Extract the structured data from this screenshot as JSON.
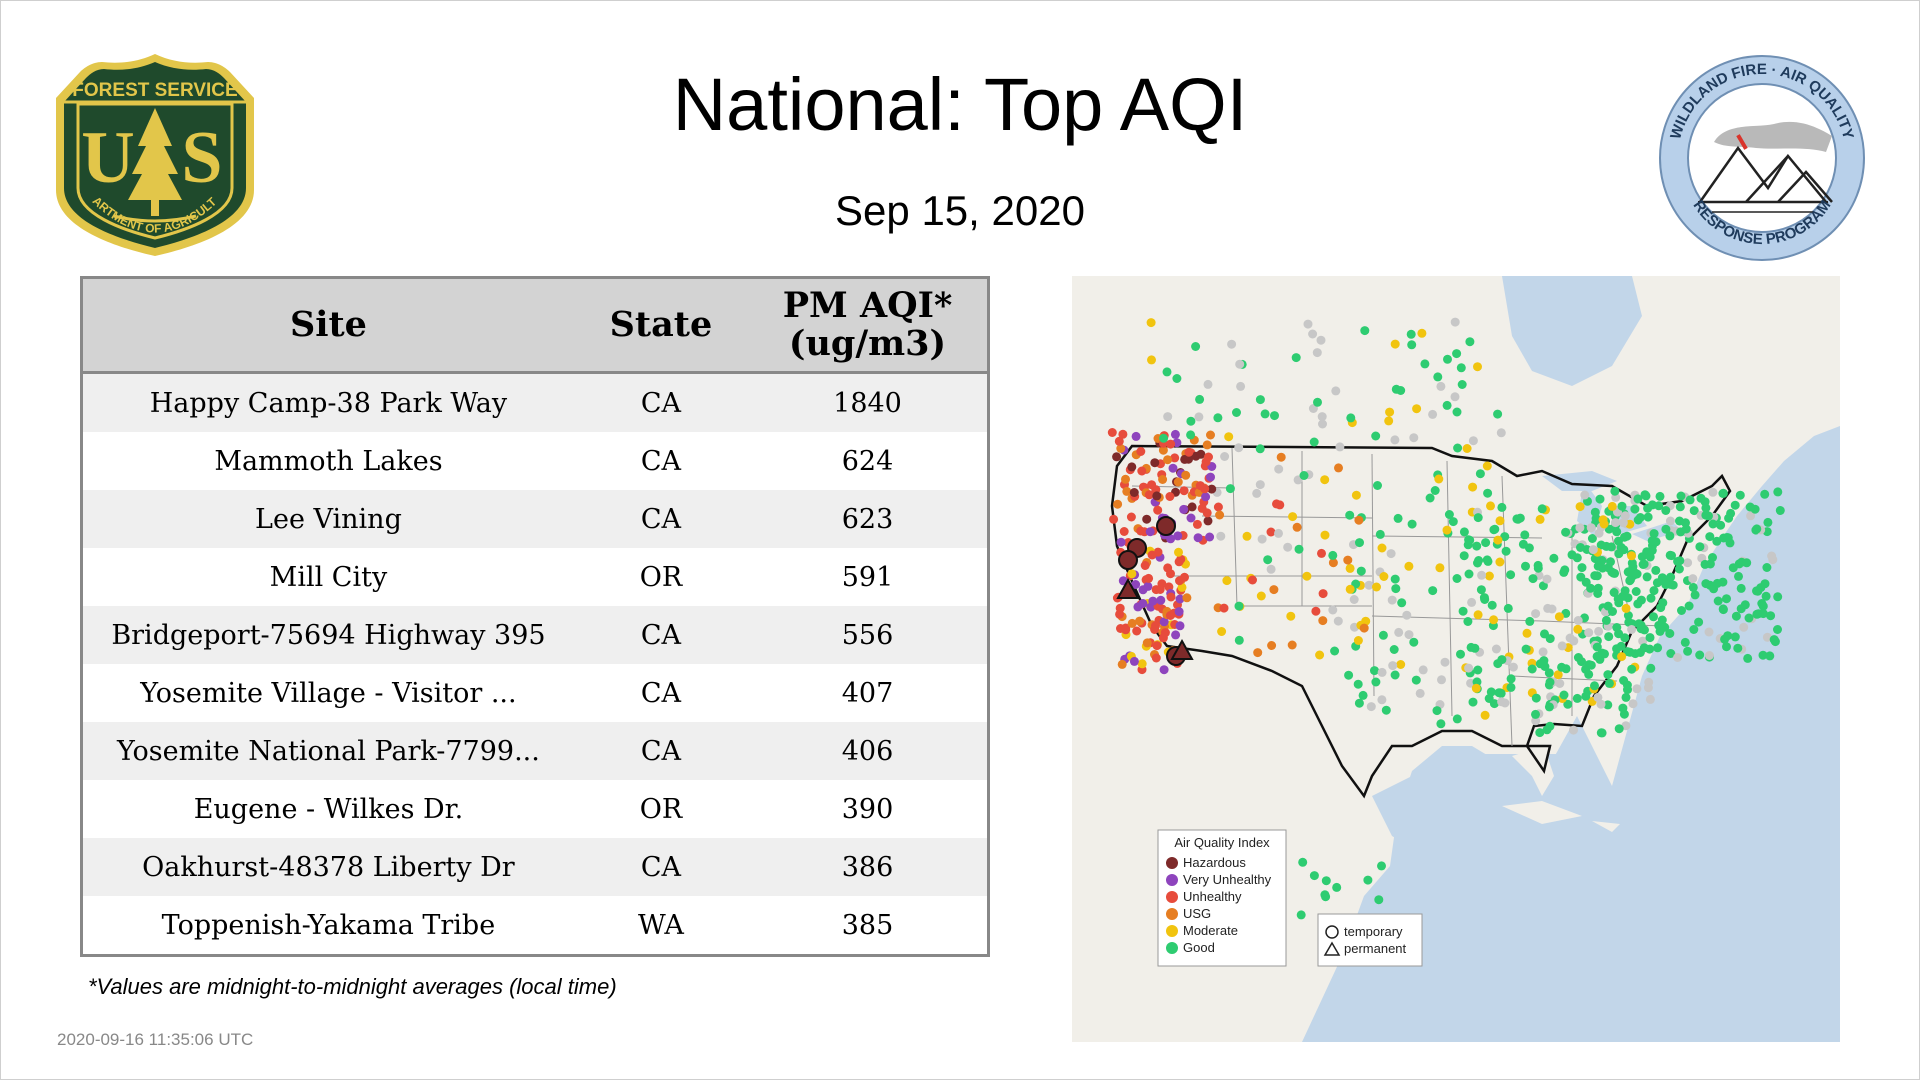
{
  "title": "National: Top AQI",
  "date": "Sep 15, 2020",
  "logos": {
    "left": {
      "name": "Forest Service shield",
      "top_text": "FOREST SERVICE",
      "center_text": "U S",
      "bottom_text": "DEPARTMENT OF AGRICULTURE",
      "colors": {
        "green": "#1f4a2c",
        "gold": "#e2c64a"
      }
    },
    "right": {
      "name": "Wildland Fire Air Quality Response Program",
      "top_text": "WILDLAND FIRE · AIR QUALITY",
      "bottom_text": "RESPONSE PROGRAM",
      "colors": {
        "ring": "#b8d0ea"
      }
    }
  },
  "table": {
    "headers": {
      "site": "Site",
      "state": "State",
      "aqi_line1": "PM AQI*",
      "aqi_line2": "(ug/m3)"
    },
    "rows": [
      {
        "site": "Happy Camp-38 Park Way",
        "state": "CA",
        "aqi": "1840"
      },
      {
        "site": "Mammoth Lakes",
        "state": "CA",
        "aqi": "624"
      },
      {
        "site": "Lee Vining",
        "state": "CA",
        "aqi": "623"
      },
      {
        "site": "Mill City",
        "state": "OR",
        "aqi": "591"
      },
      {
        "site": "Bridgeport-75694 Highway 395",
        "state": "CA",
        "aqi": "556"
      },
      {
        "site": "Yosemite Village - Visitor ...",
        "state": "CA",
        "aqi": "407"
      },
      {
        "site": "Yosemite National Park-7799...",
        "state": "CA",
        "aqi": "406"
      },
      {
        "site": "Eugene - Wilkes Dr.",
        "state": "OR",
        "aqi": "390"
      },
      {
        "site": "Oakhurst-48378 Liberty Dr",
        "state": "CA",
        "aqi": "386"
      },
      {
        "site": "Toppenish-Yakama Tribe",
        "state": "WA",
        "aqi": "385"
      }
    ]
  },
  "footnote": "*Values are midnight-to-midnight averages (local time)",
  "timestamp": "2020-09-16 11:35:06 UTC",
  "map": {
    "legend_title": "Air Quality Index",
    "legend_items": [
      {
        "label": "Hazardous",
        "color": "#7e2a2a"
      },
      {
        "label": "Very Unhealthy",
        "color": "#8e44bd"
      },
      {
        "label": "Unhealthy",
        "color": "#e74c3c"
      },
      {
        "label": "USG",
        "color": "#e67e22"
      },
      {
        "label": "Moderate",
        "color": "#f1c40f"
      },
      {
        "label": "Good",
        "color": "#2ecc71"
      }
    ],
    "shape_legend": [
      {
        "label": "temporary",
        "shape": "circle"
      },
      {
        "label": "permanent",
        "shape": "triangle"
      }
    ],
    "colors": {
      "land": "#f1efe9",
      "water": "#c2d6e9",
      "no_data": "#c7c7c7",
      "border": "#111111"
    }
  }
}
